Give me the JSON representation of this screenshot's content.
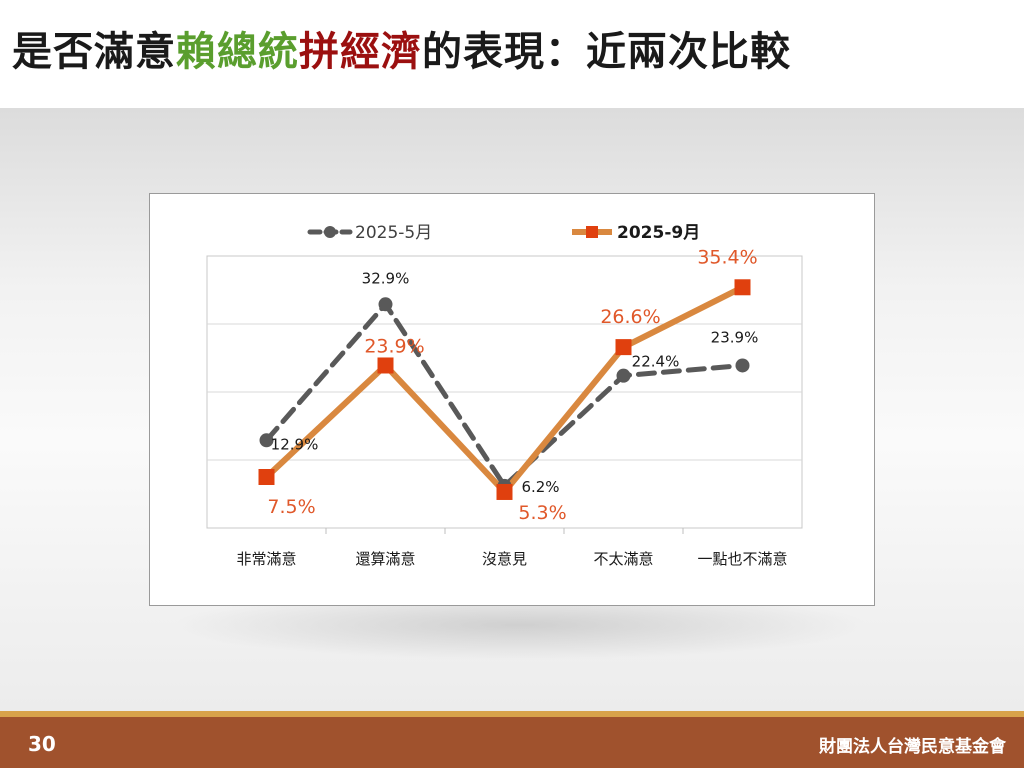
{
  "header": {
    "title_part1": "是否滿意",
    "title_part2": "賴總統",
    "title_part3": "拼經濟",
    "title_part4": "的表現：近兩次比較"
  },
  "footer": {
    "page_number": "30",
    "organization": "財團法人台灣民意基金會"
  },
  "colors": {
    "series_may": "#595959",
    "series_sep": "#d9883f",
    "marker_sep": "#e0400e",
    "label_sep": "#e0582a",
    "title_green": "#5a9e2e",
    "title_red": "#9b1010",
    "footer_bg": "#a0522d"
  },
  "chart_data": {
    "type": "line",
    "title": "",
    "xlabel": "",
    "ylabel": "",
    "ylim": [
      0,
      40
    ],
    "grid": true,
    "legend_position": "top",
    "categories": [
      "非常滿意",
      "還算滿意",
      "沒意見",
      "不太滿意",
      "一點也不滿意"
    ],
    "series": [
      {
        "name": "2025-5月",
        "values": [
          12.9,
          32.9,
          6.2,
          22.4,
          23.9
        ],
        "labels": [
          "12.9%",
          "32.9%",
          "6.2%",
          "22.4%",
          "23.9%"
        ],
        "style": "dashed",
        "marker": "circle"
      },
      {
        "name": "2025-9月",
        "values": [
          7.5,
          23.9,
          5.3,
          26.6,
          35.4
        ],
        "labels": [
          "7.5%",
          "23.9%",
          "5.3%",
          "26.6%",
          "35.4%"
        ],
        "style": "solid",
        "marker": "square"
      }
    ]
  }
}
